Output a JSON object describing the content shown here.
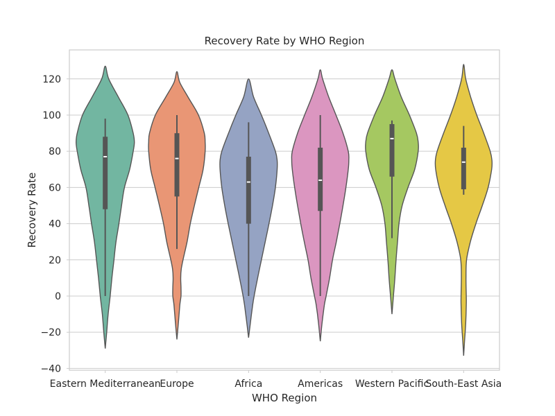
{
  "chart_data": {
    "type": "violin",
    "title": "Recovery Rate by WHO Region",
    "xlabel": "WHO Region",
    "ylabel": "Recovery Rate",
    "ylim": [
      -41,
      136
    ],
    "yticks": [
      -40,
      -20,
      0,
      20,
      40,
      60,
      80,
      100,
      120
    ],
    "ytick_labels": [
      "−40",
      "−20",
      "0",
      "20",
      "40",
      "60",
      "80",
      "100",
      "120"
    ],
    "grid": true,
    "line_color": "#555555",
    "grid_color": "#cccccc",
    "categories": [
      "Eastern Mediterranean",
      "Europe",
      "Africa",
      "Americas",
      "Western Pacific",
      "South-East Asia"
    ],
    "colors": [
      "#72b6a1",
      "#e99675",
      "#95a3c3",
      "#db96c0",
      "#a5c861",
      "#e5c845"
    ],
    "series": [
      {
        "min": 0,
        "q1": 48,
        "median": 77,
        "q3": 88,
        "max": 98,
        "density": [
          [
            -29,
            0
          ],
          [
            -20,
            0.05
          ],
          [
            -10,
            0.1
          ],
          [
            0,
            0.17
          ],
          [
            10,
            0.23
          ],
          [
            20,
            0.3
          ],
          [
            30,
            0.37
          ],
          [
            40,
            0.47
          ],
          [
            50,
            0.56
          ],
          [
            60,
            0.66
          ],
          [
            70,
            0.84
          ],
          [
            80,
            0.96
          ],
          [
            85,
            1.0
          ],
          [
            90,
            0.96
          ],
          [
            100,
            0.78
          ],
          [
            110,
            0.45
          ],
          [
            120,
            0.12
          ],
          [
            127,
            0
          ]
        ]
      },
      {
        "min": 26,
        "q1": 55,
        "median": 76,
        "q3": 90,
        "max": 100,
        "density": [
          [
            -24,
            0
          ],
          [
            -15,
            0.05
          ],
          [
            -5,
            0.1
          ],
          [
            0,
            0.14
          ],
          [
            5,
            0.14
          ],
          [
            10,
            0.13
          ],
          [
            15,
            0.15
          ],
          [
            20,
            0.21
          ],
          [
            30,
            0.35
          ],
          [
            40,
            0.46
          ],
          [
            50,
            0.6
          ],
          [
            60,
            0.75
          ],
          [
            70,
            0.9
          ],
          [
            80,
            0.97
          ],
          [
            85,
            0.97
          ],
          [
            90,
            0.94
          ],
          [
            100,
            0.74
          ],
          [
            110,
            0.38
          ],
          [
            118,
            0.1
          ],
          [
            124,
            0
          ]
        ]
      },
      {
        "min": 0,
        "q1": 40,
        "median": 63,
        "q3": 77,
        "max": 96,
        "density": [
          [
            -23,
            0
          ],
          [
            -15,
            0.06
          ],
          [
            -5,
            0.14
          ],
          [
            0,
            0.19
          ],
          [
            10,
            0.31
          ],
          [
            20,
            0.44
          ],
          [
            30,
            0.57
          ],
          [
            40,
            0.7
          ],
          [
            50,
            0.82
          ],
          [
            60,
            0.92
          ],
          [
            70,
            0.98
          ],
          [
            75,
            0.98
          ],
          [
            80,
            0.92
          ],
          [
            90,
            0.69
          ],
          [
            100,
            0.44
          ],
          [
            110,
            0.17
          ],
          [
            120,
            0
          ]
        ]
      },
      {
        "min": 0,
        "q1": 47,
        "median": 64,
        "q3": 82,
        "max": 100,
        "density": [
          [
            -25,
            0
          ],
          [
            -15,
            0.06
          ],
          [
            -5,
            0.14
          ],
          [
            0,
            0.2
          ],
          [
            10,
            0.32
          ],
          [
            20,
            0.42
          ],
          [
            30,
            0.55
          ],
          [
            40,
            0.67
          ],
          [
            50,
            0.78
          ],
          [
            60,
            0.88
          ],
          [
            70,
            0.96
          ],
          [
            75,
            0.98
          ],
          [
            80,
            0.96
          ],
          [
            90,
            0.78
          ],
          [
            100,
            0.54
          ],
          [
            110,
            0.29
          ],
          [
            120,
            0.08
          ],
          [
            125,
            0
          ]
        ]
      },
      {
        "min": 32,
        "q1": 66,
        "median": 87,
        "q3": 95,
        "max": 97,
        "density": [
          [
            -10,
            0
          ],
          [
            0,
            0.05
          ],
          [
            10,
            0.1
          ],
          [
            20,
            0.14
          ],
          [
            30,
            0.19
          ],
          [
            40,
            0.24
          ],
          [
            50,
            0.35
          ],
          [
            60,
            0.55
          ],
          [
            70,
            0.78
          ],
          [
            80,
            0.9
          ],
          [
            85,
            0.9
          ],
          [
            90,
            0.84
          ],
          [
            100,
            0.6
          ],
          [
            110,
            0.32
          ],
          [
            120,
            0.1
          ],
          [
            125,
            0
          ]
        ]
      },
      {
        "min": 56,
        "q1": 59,
        "median": 74,
        "q3": 82,
        "max": 94,
        "density": [
          [
            -33,
            0
          ],
          [
            -25,
            0.03
          ],
          [
            -15,
            0.07
          ],
          [
            -5,
            0.09
          ],
          [
            0,
            0.09
          ],
          [
            10,
            0.08
          ],
          [
            20,
            0.1
          ],
          [
            30,
            0.23
          ],
          [
            40,
            0.42
          ],
          [
            50,
            0.64
          ],
          [
            60,
            0.84
          ],
          [
            70,
            0.96
          ],
          [
            75,
            0.97
          ],
          [
            80,
            0.91
          ],
          [
            90,
            0.69
          ],
          [
            100,
            0.45
          ],
          [
            110,
            0.24
          ],
          [
            120,
            0.07
          ],
          [
            128,
            0
          ]
        ]
      }
    ]
  }
}
